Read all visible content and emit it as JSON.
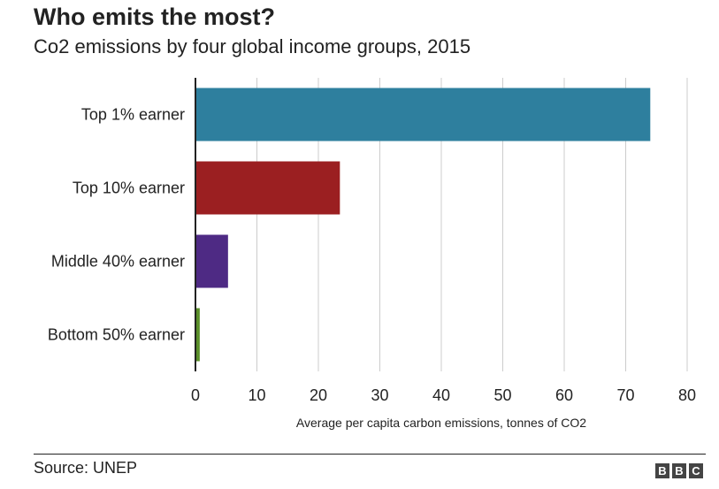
{
  "header": {
    "title": "Who emits the most?",
    "subtitle": "Co2 emissions by four global income groups, 2015"
  },
  "footer": {
    "source": "Source: UNEP",
    "logo_text": "BBC"
  },
  "colors": {
    "grid": "#cccccc",
    "axis": "#222222",
    "text": "#222222"
  },
  "chart_data": {
    "type": "bar",
    "orientation": "horizontal",
    "title": "Who emits the most?",
    "subtitle": "Co2 emissions by four global income groups, 2015",
    "xlabel": "Average per capita carbon emissions, tonnes of CO2",
    "ylabel": "",
    "categories": [
      "Top 1% earner",
      "Top 10% earner",
      "Middle 40% earner",
      "Bottom 50% earner"
    ],
    "values": [
      74,
      23.5,
      5.3,
      0.7
    ],
    "bar_colors": [
      "#2e7f9e",
      "#9b1f21",
      "#4e2a84",
      "#5a8f29"
    ],
    "xlim": [
      0,
      80
    ],
    "xticks": [
      0,
      10,
      20,
      30,
      40,
      50,
      60,
      70,
      80
    ],
    "grid": true,
    "legend": "none"
  }
}
